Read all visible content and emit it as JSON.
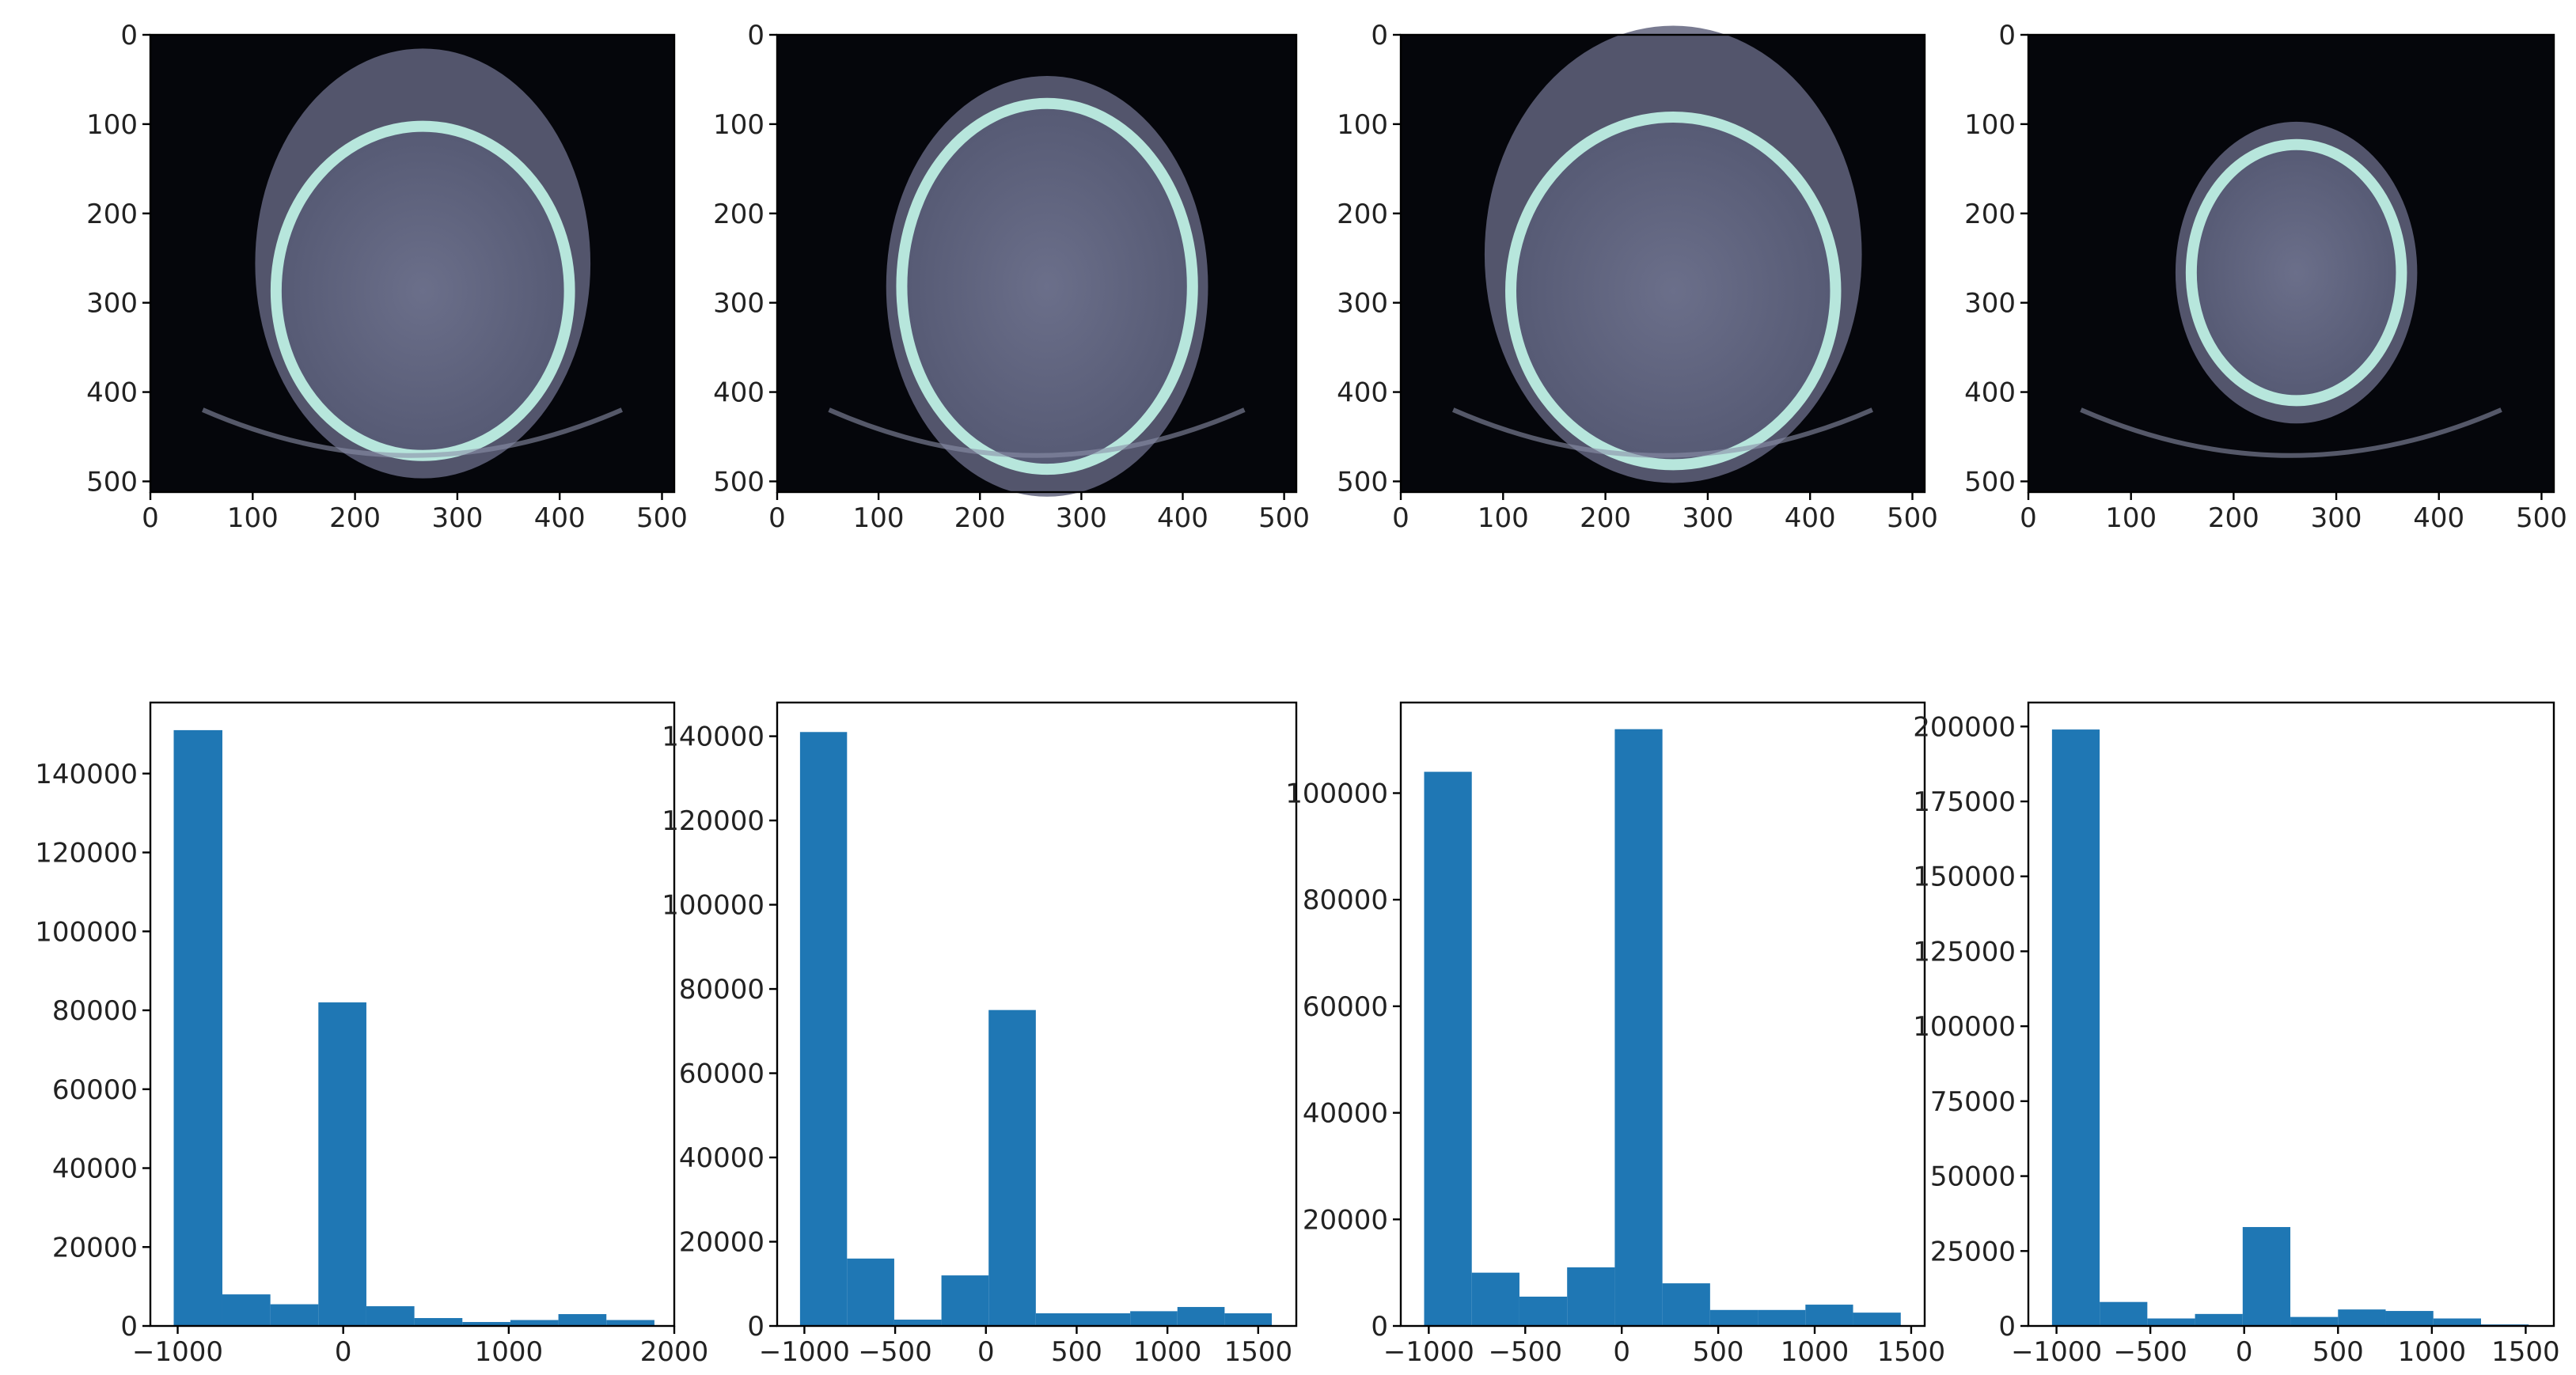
{
  "colors": {
    "bar": "#1f77b4",
    "ct_background": "#05060b",
    "ct_tissue": "#61647e",
    "ct_bone": "#b7e6dc"
  },
  "chart_data": [
    {
      "type": "image",
      "panel": "ct-slice-1",
      "colormap": "bone",
      "xlim": [
        0,
        512
      ],
      "ylim": [
        512,
        0
      ],
      "xticks": [
        0,
        100,
        200,
        300,
        400,
        500
      ],
      "yticks": [
        0,
        100,
        200,
        300,
        400,
        500
      ]
    },
    {
      "type": "image",
      "panel": "ct-slice-2",
      "colormap": "bone",
      "xlim": [
        0,
        512
      ],
      "ylim": [
        512,
        0
      ],
      "xticks": [
        0,
        100,
        200,
        300,
        400,
        500
      ],
      "yticks": [
        0,
        100,
        200,
        300,
        400,
        500
      ]
    },
    {
      "type": "image",
      "panel": "ct-slice-3",
      "colormap": "bone",
      "xlim": [
        0,
        512
      ],
      "ylim": [
        512,
        0
      ],
      "xticks": [
        0,
        100,
        200,
        300,
        400,
        500
      ],
      "yticks": [
        0,
        100,
        200,
        300,
        400,
        500
      ]
    },
    {
      "type": "image",
      "panel": "ct-slice-4",
      "colormap": "bone",
      "xlim": [
        0,
        512
      ],
      "ylim": [
        512,
        0
      ],
      "xticks": [
        0,
        100,
        200,
        300,
        400,
        500
      ],
      "yticks": [
        0,
        100,
        200,
        300,
        400,
        500
      ]
    },
    {
      "type": "bar",
      "panel": "histogram-1",
      "bin_edges": [
        -1024,
        -730,
        -440,
        -150,
        140,
        430,
        720,
        1010,
        1300,
        1590,
        1880
      ],
      "values": [
        151000,
        8000,
        5500,
        82000,
        5000,
        2000,
        1000,
        1500,
        3000,
        1500
      ],
      "xlim": [
        -1165,
        2000
      ],
      "ylim": [
        0,
        158000
      ],
      "xticks": [
        -1000,
        0,
        1000,
        2000
      ],
      "yticks": [
        0,
        20000,
        40000,
        60000,
        80000,
        100000,
        120000,
        140000
      ],
      "grid": false
    },
    {
      "type": "bar",
      "panel": "histogram-2",
      "bin_edges": [
        -1024,
        -765,
        -505,
        -245,
        15,
        275,
        535,
        795,
        1055,
        1315,
        1575
      ],
      "values": [
        141000,
        16000,
        1500,
        12000,
        75000,
        3000,
        3000,
        3500,
        4500,
        3000
      ],
      "xlim": [
        -1150,
        1710
      ],
      "ylim": [
        0,
        148000
      ],
      "xticks": [
        -1000,
        -500,
        0,
        500,
        1000,
        1500
      ],
      "yticks": [
        0,
        20000,
        40000,
        60000,
        80000,
        100000,
        120000,
        140000
      ],
      "grid": false
    },
    {
      "type": "bar",
      "panel": "histogram-3",
      "bin_edges": [
        -1024,
        -777,
        -530,
        -283,
        -36,
        211,
        458,
        705,
        952,
        1199,
        1446
      ],
      "values": [
        104000,
        10000,
        5500,
        11000,
        112000,
        8000,
        3000,
        3000,
        4000,
        2500
      ],
      "xlim": [
        -1145,
        1570
      ],
      "ylim": [
        0,
        117000
      ],
      "xticks": [
        -1000,
        -500,
        0,
        500,
        1000,
        1500
      ],
      "yticks": [
        0,
        20000,
        40000,
        60000,
        80000,
        100000
      ],
      "grid": false
    },
    {
      "type": "bar",
      "panel": "histogram-4",
      "bin_edges": [
        -1024,
        -770,
        -516,
        -262,
        -8,
        246,
        500,
        754,
        1008,
        1262,
        1516
      ],
      "values": [
        199000,
        8000,
        2500,
        4000,
        33000,
        3000,
        5500,
        5000,
        2500,
        500
      ],
      "xlim": [
        -1150,
        1650
      ],
      "ylim": [
        0,
        208000
      ],
      "xticks": [
        -1000,
        -500,
        0,
        500,
        1000,
        1500
      ],
      "yticks": [
        0,
        25000,
        50000,
        75000,
        100000,
        125000,
        150000,
        175000,
        200000
      ],
      "grid": false
    }
  ]
}
